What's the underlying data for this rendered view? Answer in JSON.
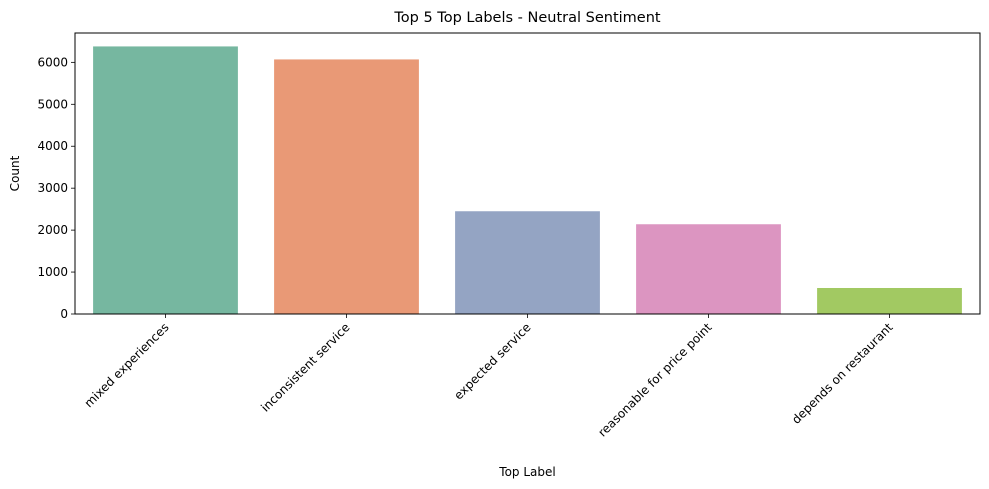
{
  "chart_data": {
    "type": "bar",
    "title": "Top 5 Top Labels - Neutral Sentiment",
    "xlabel": "Top Label",
    "ylabel": "Count",
    "categories": [
      "mixed experiences",
      "inconsistent service",
      "expected service",
      "reasonable for price point",
      "depends on restaurant"
    ],
    "values": [
      6380,
      6070,
      2450,
      2140,
      620
    ],
    "colors": [
      "#76b7a0",
      "#e99976",
      "#94a4c3",
      "#dc95c1",
      "#a2c962"
    ],
    "ylim": [
      0,
      6700
    ],
    "yticks": [
      0,
      1000,
      2000,
      3000,
      4000,
      5000,
      6000
    ],
    "grid": false,
    "legend": "none"
  }
}
